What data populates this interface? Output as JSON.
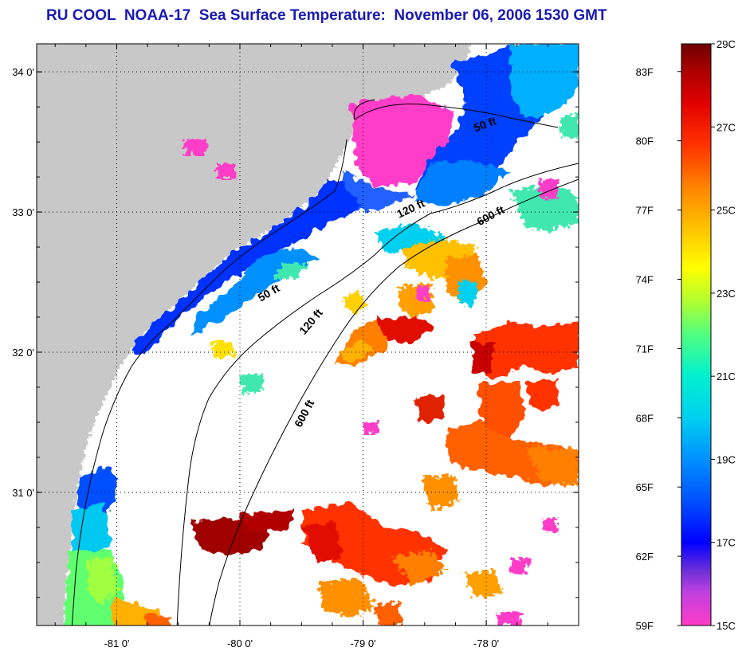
{
  "title": "RU COOL  NOAA-17  Sea Surface Temperature:  November 06, 2006 1530 GMT",
  "map": {
    "lon_range": [
      -81.65,
      -77.25
    ],
    "lat_range": [
      30.05,
      34.2
    ],
    "longitude_ticks": [
      {
        "value": -81,
        "label": "-81 0'"
      },
      {
        "value": -80,
        "label": "-80 0'"
      },
      {
        "value": -79,
        "label": "-79 0'"
      },
      {
        "value": -78,
        "label": "-78 0'"
      }
    ],
    "latitude_ticks": [
      {
        "value": 31,
        "label": "31 0'"
      },
      {
        "value": 32,
        "label": "32 0'"
      },
      {
        "value": 33,
        "label": "33 0'"
      },
      {
        "value": 34,
        "label": "34 0'"
      }
    ],
    "grid": true,
    "land_color": "#c8c8c8",
    "no_data_color": "#ffffff",
    "isobath_labels": [
      {
        "name": "isobath-label-50ft-north",
        "text": "50 ft",
        "lon": -78.0,
        "lat": 33.6,
        "angle": -20
      },
      {
        "name": "isobath-label-120ft-north",
        "text": "120 ft",
        "lon": -78.6,
        "lat": 33.0,
        "angle": -25
      },
      {
        "name": "isobath-label-600ft-north",
        "text": "600 ft",
        "lon": -77.95,
        "lat": 32.95,
        "angle": -28
      },
      {
        "name": "isobath-label-50ft-south",
        "text": "50 ft",
        "lon": -79.75,
        "lat": 32.4,
        "angle": -30
      },
      {
        "name": "isobath-label-120ft-south",
        "text": "120 ft",
        "lon": -79.4,
        "lat": 32.2,
        "angle": -50
      },
      {
        "name": "isobath-label-600ft-south",
        "text": "600 ft",
        "lon": -79.45,
        "lat": 31.55,
        "angle": -62
      }
    ]
  },
  "colorbar": {
    "min_c": 15,
    "max_c": 29,
    "celsius_ticks": [
      {
        "value": 15,
        "label": "15C"
      },
      {
        "value": 17,
        "label": "17C"
      },
      {
        "value": 19,
        "label": "19C"
      },
      {
        "value": 21,
        "label": "21C"
      },
      {
        "value": 23,
        "label": "23C"
      },
      {
        "value": 25,
        "label": "25C"
      },
      {
        "value": 27,
        "label": "27C"
      },
      {
        "value": 29,
        "label": "29C"
      }
    ],
    "fahrenheit_ticks": [
      {
        "value": 59,
        "label": "59F"
      },
      {
        "value": 62,
        "label": "62F"
      },
      {
        "value": 65,
        "label": "65F"
      },
      {
        "value": 68,
        "label": "68F"
      },
      {
        "value": 71,
        "label": "71F"
      },
      {
        "value": 74,
        "label": "74F"
      },
      {
        "value": 77,
        "label": "77F"
      },
      {
        "value": 80,
        "label": "80F"
      },
      {
        "value": 83,
        "label": "83F"
      }
    ],
    "color_stops": [
      {
        "c": 15.0,
        "color": "#ff3cc8"
      },
      {
        "c": 15.8,
        "color": "#c040e0"
      },
      {
        "c": 16.3,
        "color": "#7030d8"
      },
      {
        "c": 17.0,
        "color": "#0000ff"
      },
      {
        "c": 18.0,
        "color": "#0050ff"
      },
      {
        "c": 19.0,
        "color": "#0090ff"
      },
      {
        "c": 20.0,
        "color": "#00d0f0"
      },
      {
        "c": 21.0,
        "color": "#00f0d0"
      },
      {
        "c": 22.0,
        "color": "#50ff80"
      },
      {
        "c": 22.8,
        "color": "#b0ff30"
      },
      {
        "c": 23.6,
        "color": "#ffff00"
      },
      {
        "c": 24.6,
        "color": "#ffc000"
      },
      {
        "c": 25.6,
        "color": "#ff8000"
      },
      {
        "c": 26.6,
        "color": "#ff3000"
      },
      {
        "c": 27.6,
        "color": "#e00000"
      },
      {
        "c": 28.3,
        "color": "#b00000"
      },
      {
        "c": 29.0,
        "color": "#700000"
      }
    ]
  }
}
